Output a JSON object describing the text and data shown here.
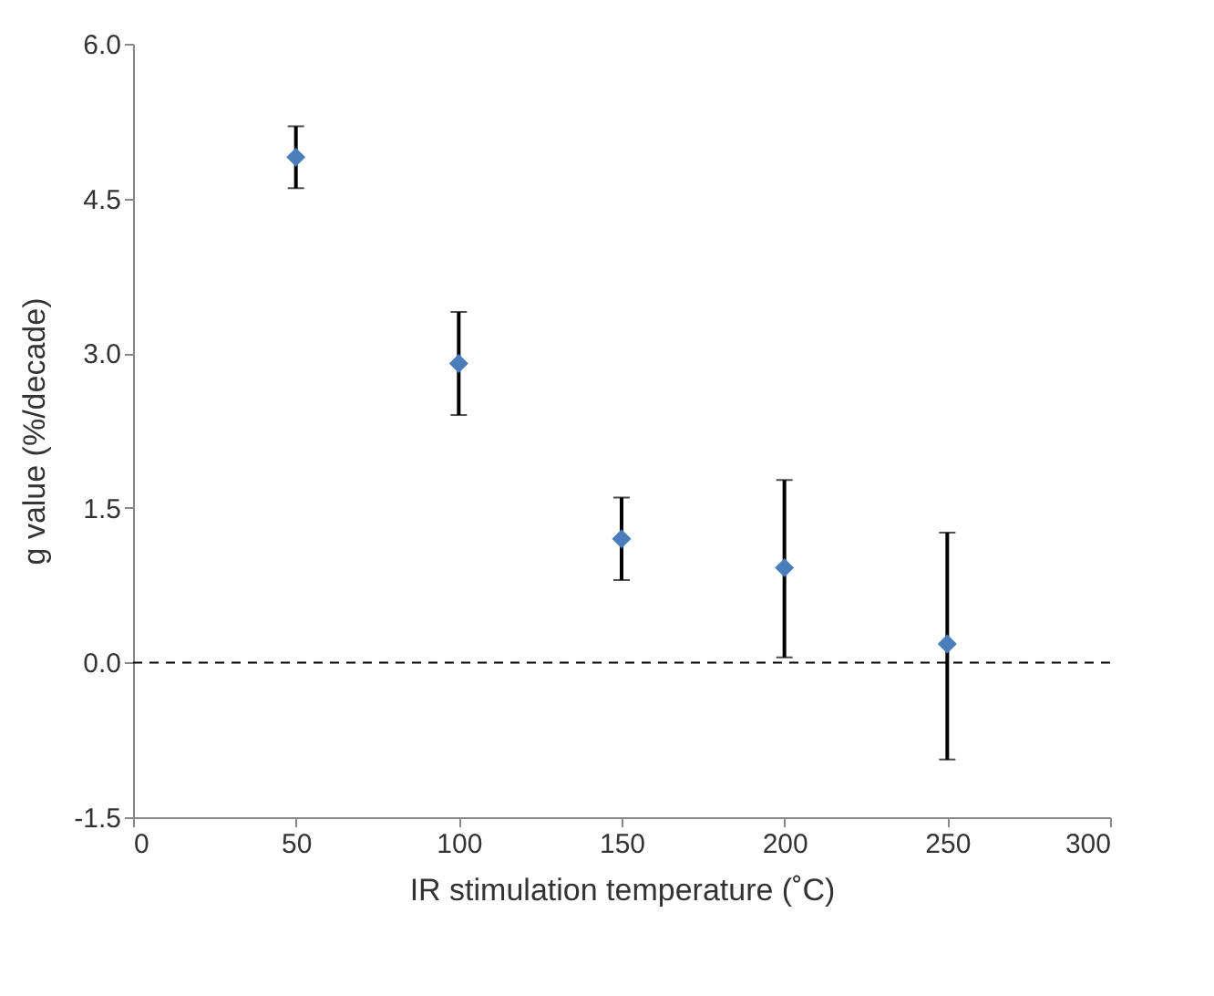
{
  "chart_data": {
    "type": "scatter",
    "xlabel": "IR stimulation temperature (˚C)",
    "ylabel": "g value (%/decade)",
    "x": [
      50,
      100,
      150,
      200,
      250
    ],
    "series": [
      {
        "color": "#4a7ebb",
        "values": [
          4.9,
          2.9,
          1.2,
          0.92,
          0.18
        ],
        "errors": [
          [
            4.6,
            5.2
          ],
          [
            2.4,
            3.4
          ],
          [
            0.8,
            1.6
          ],
          [
            0.05,
            1.77
          ],
          [
            -0.94,
            1.26
          ]
        ]
      }
    ],
    "xlim": [
      0,
      300
    ],
    "xticks": [
      0,
      50,
      100,
      150,
      200,
      250,
      300
    ],
    "ylim": [
      -1.5,
      6
    ],
    "yticks": [
      {
        "value": -1.5,
        "label": "-1.5"
      },
      {
        "value": 0,
        "label": "0.0"
      },
      {
        "value": 1.5,
        "label": "1.5"
      },
      {
        "value": 3,
        "label": "3.0"
      },
      {
        "value": 4.5,
        "label": "4.5"
      },
      {
        "value": 6,
        "label": "6.0"
      }
    ],
    "ref_lines": [
      {
        "axis": "y",
        "value": 0,
        "line_style": "dashed",
        "color": "#000000"
      }
    ],
    "marker": "diamond",
    "grid": false
  }
}
